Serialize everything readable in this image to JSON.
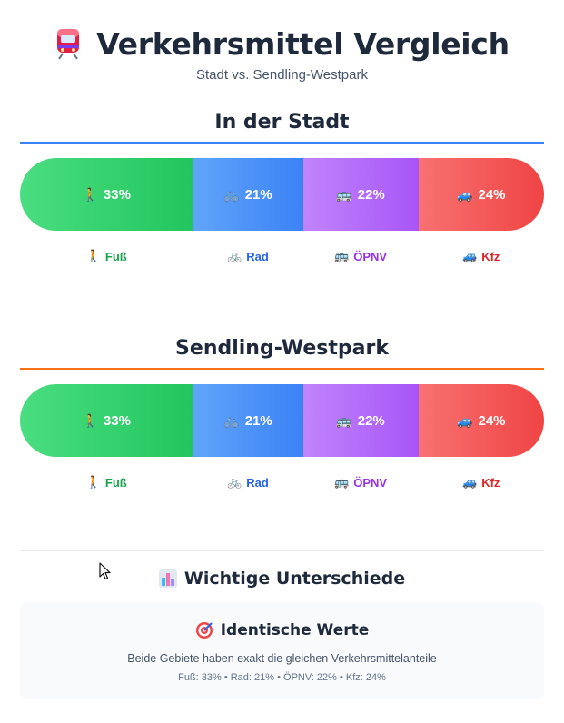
{
  "header": {
    "icon": "train-icon",
    "title": "Verkehrsmittel Vergleich",
    "subtitle": "Stadt vs. Sendling-Westpark"
  },
  "sections": [
    {
      "title": "In der Stadt",
      "rule_color": "#3b82f6",
      "bar": [
        {
          "icon": "🚶",
          "value": "33%",
          "share": 0.33,
          "from": "#4ade80",
          "to": "#22c55e"
        },
        {
          "icon": "🚲",
          "value": "21%",
          "share": 0.21,
          "from": "#60a5fa",
          "to": "#3b82f6"
        },
        {
          "icon": "🚌",
          "value": "22%",
          "share": 0.22,
          "from": "#c084fc",
          "to": "#a855f7"
        },
        {
          "icon": "🚙",
          "value": "24%",
          "share": 0.24,
          "from": "#f87171",
          "to": "#ef4444"
        }
      ],
      "legend": [
        {
          "icon": "🚶",
          "label": "Fuß",
          "color": "#16a34a"
        },
        {
          "icon": "🚲",
          "label": "Rad",
          "color": "#2563eb"
        },
        {
          "icon": "🚌",
          "label": "ÖPNV",
          "color": "#9333ea"
        },
        {
          "icon": "🚙",
          "label": "Kfz",
          "color": "#dc2626"
        }
      ]
    },
    {
      "title": "Sendling-Westpark",
      "rule_color": "#f97316",
      "bar": [
        {
          "icon": "🚶",
          "value": "33%",
          "share": 0.33,
          "from": "#4ade80",
          "to": "#22c55e"
        },
        {
          "icon": "🚲",
          "value": "21%",
          "share": 0.21,
          "from": "#60a5fa",
          "to": "#3b82f6"
        },
        {
          "icon": "🚌",
          "value": "22%",
          "share": 0.22,
          "from": "#c084fc",
          "to": "#a855f7"
        },
        {
          "icon": "🚙",
          "value": "24%",
          "share": 0.24,
          "from": "#f87171",
          "to": "#ef4444"
        }
      ],
      "legend": [
        {
          "icon": "🚶",
          "label": "Fuß",
          "color": "#16a34a"
        },
        {
          "icon": "🚲",
          "label": "Rad",
          "color": "#2563eb"
        },
        {
          "icon": "🚌",
          "label": "ÖPNV",
          "color": "#9333ea"
        },
        {
          "icon": "🚙",
          "label": "Kfz",
          "color": "#dc2626"
        }
      ]
    }
  ],
  "differences": {
    "icon": "bar-chart-icon",
    "title": "Wichtige Unterschiede",
    "card": {
      "icon": "target-icon",
      "title": "Identische Werte",
      "description": "Beide Gebiete haben exakt die gleichen Verkehrsmittelanteile",
      "values": "Fuß: 33% • Rad: 21% • ÖPNV: 22% • Kfz: 24%"
    }
  }
}
